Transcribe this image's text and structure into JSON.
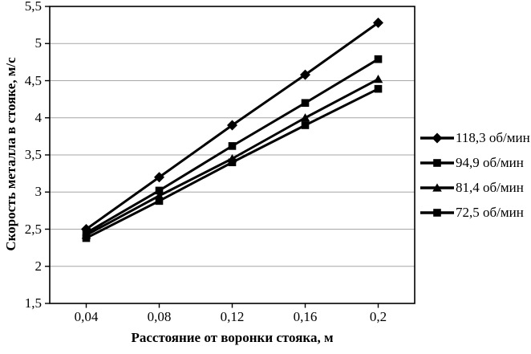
{
  "chart_data": {
    "type": "line",
    "title": "",
    "xlabel": "Расстояние от воронки стояка, м",
    "ylabel": "Скорость металла в стояке, м/с",
    "categories": [
      "0,04",
      "0,08",
      "0,12",
      "0,16",
      "0,2"
    ],
    "x_values": [
      0.04,
      0.08,
      0.12,
      0.16,
      0.2
    ],
    "y_tick_labels": [
      "5,5",
      "5",
      "4,5",
      "4",
      "3,5",
      "3",
      "2,5",
      "2",
      "1,5"
    ],
    "ylim": [
      1.5,
      5.5
    ],
    "y_step": 0.5,
    "grid": "horizontal-only",
    "legend_position": "right",
    "series": [
      {
        "name": "118,3 об/мин",
        "marker": "diamond",
        "color": "#000000",
        "values": [
          2.5,
          3.2,
          3.9,
          4.58,
          5.28
        ]
      },
      {
        "name": "94,9 об/мин",
        "marker": "square",
        "color": "#000000",
        "values": [
          2.45,
          3.02,
          3.62,
          4.2,
          4.79
        ]
      },
      {
        "name": "81,4 об/мин",
        "marker": "triangle",
        "color": "#000000",
        "values": [
          2.42,
          2.95,
          3.45,
          4.0,
          4.52
        ]
      },
      {
        "name": "72,5 об/мин",
        "marker": "square",
        "color": "#000000",
        "values": [
          2.38,
          2.88,
          3.4,
          3.9,
          4.39
        ]
      }
    ],
    "colors": {
      "series": "#000000",
      "gridline": "#a6a6a6",
      "plot_border": "#000000",
      "background": "#ffffff"
    }
  }
}
